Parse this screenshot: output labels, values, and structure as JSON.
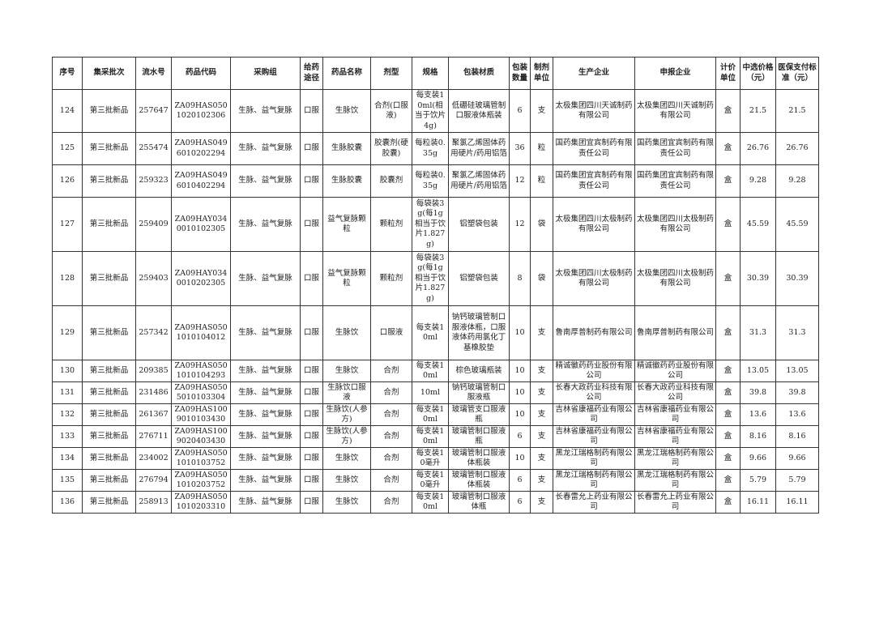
{
  "headers": [
    "序号",
    "集采批次",
    "流水号",
    "药品代码",
    "采购组",
    "给药途径",
    "药品名称",
    "剂型",
    "规格",
    "包装材质",
    "包装数量",
    "制剂单位",
    "生产企业",
    "申报企业",
    "计价单位",
    "中选价格（元）",
    "医保支付标准（元）"
  ],
  "rows": [
    [
      "124",
      "第三批新品",
      "257647",
      "ZA09HAS0501020102306",
      "生脉、益气复脉",
      "口服",
      "生脉饮",
      "合剂(口服液)",
      "每支装10ml(相当于饮片4g)",
      "低硼硅玻璃管制口服液体瓶装",
      "6",
      "支",
      "太极集团四川天诚制药有限公司",
      "太极集团四川天诚制药有限公司",
      "盒",
      "21.5",
      "21.5"
    ],
    [
      "125",
      "第三批新品",
      "255474",
      "ZA09HAS0496010202294",
      "生脉、益气复脉",
      "口服",
      "生脉胶囊",
      "胶囊剂(硬胶囊)",
      "每粒装0.35g",
      "聚氯乙烯固体药用硬片/药用铝箔",
      "36",
      "粒",
      "国药集团宜宾制药有限责任公司",
      "国药集团宜宾制药有限责任公司",
      "盒",
      "26.76",
      "26.76"
    ],
    [
      "126",
      "第三批新品",
      "259323",
      "ZA09HAS0496010402294",
      "生脉、益气复脉",
      "口服",
      "生脉胶囊",
      "胶囊剂",
      "每粒装0.35g",
      "聚氯乙烯固体药用硬片/药用铝箔",
      "12",
      "粒",
      "国药集团宜宾制药有限责任公司",
      "国药集团宜宾制药有限责任公司",
      "盒",
      "9.28",
      "9.28"
    ],
    [
      "127",
      "第三批新品",
      "259409",
      "ZA09HAY0340010102305",
      "生脉、益气复脉",
      "口服",
      "益气复脉颗粒",
      "颗粒剂",
      "每袋装3g(每1g相当于饮片1.827g)",
      "铝塑袋包装",
      "12",
      "袋",
      "太极集团四川太极制药有限公司",
      "太极集团四川太极制药有限公司",
      "盒",
      "45.59",
      "45.59"
    ],
    [
      "128",
      "第三批新品",
      "259403",
      "ZA09HAY0340010202305",
      "生脉、益气复脉",
      "口服",
      "益气复脉颗粒",
      "颗粒剂",
      "每袋装3g(每1g相当于饮片1.827g)",
      "铝塑袋包装",
      "8",
      "袋",
      "太极集团四川太极制药有限公司",
      "太极集团四川太极制药有限公司",
      "盒",
      "30.39",
      "30.39"
    ],
    [
      "129",
      "第三批新品",
      "257342",
      "ZA09HAS0501010104012",
      "生脉、益气复脉",
      "口服",
      "生脉饮",
      "口服液",
      "每支装10ml",
      "钠钙玻璃管制口服液体瓶，口服液体药用氯化丁基橡胶垫",
      "10",
      "支",
      "鲁南厚普制药有限公司",
      "鲁南厚普制药有限公司",
      "盒",
      "31.3",
      "31.3"
    ],
    [
      "130",
      "第三批新品",
      "209385",
      "ZA09HAS0501010104293",
      "生脉、益气复脉",
      "口服",
      "生脉饮",
      "合剂",
      "每支装10ml",
      "棕色玻璃瓶装",
      "10",
      "支",
      "精诚徽药药业股份有限公司",
      "精诚徽药药业股份有限公司",
      "盒",
      "13.05",
      "13.05"
    ],
    [
      "131",
      "第三批新品",
      "231486",
      "ZA09HAS0505010103304",
      "生脉、益气复脉",
      "口服",
      "生脉饮口服液",
      "合剂",
      "10ml",
      "钠钙玻璃管制口服液瓶",
      "10",
      "支",
      "长春大政药业科技有限公司",
      "长春大政药业科技有限公司",
      "盒",
      "39.8",
      "39.8"
    ],
    [
      "132",
      "第三批新品",
      "261367",
      "ZA09HAS1009010103430",
      "生脉、益气复脉",
      "口服",
      "生脉饮(人参方)",
      "合剂",
      "每支装10ml",
      "玻璃管支口服液瓶",
      "10",
      "支",
      "吉林省康福药业有限公司",
      "吉林省康福药业有限公司",
      "盒",
      "13.6",
      "13.6"
    ],
    [
      "133",
      "第三批新品",
      "276711",
      "ZA09HAS1009020403430",
      "生脉、益气复脉",
      "口服",
      "生脉饮(人参方)",
      "合剂",
      "每支装10ml",
      "玻璃管制口服液瓶",
      "6",
      "支",
      "吉林省康福药业有限公司",
      "吉林省康福药业有限公司",
      "盒",
      "8.16",
      "8.16"
    ],
    [
      "134",
      "第三批新品",
      "234002",
      "ZA09HAS0501010103752",
      "生脉、益气复脉",
      "口服",
      "生脉饮",
      "合剂",
      "每支装10毫升",
      "玻璃管制口服液体瓶装",
      "10",
      "支",
      "黑龙江瑞格制药有限公司",
      "黑龙江瑞格制药有限公司",
      "盒",
      "9.66",
      "9.66"
    ],
    [
      "135",
      "第三批新品",
      "276794",
      "ZA09HAS0501010203752",
      "生脉、益气复脉",
      "口服",
      "生脉饮",
      "合剂",
      "每支装10毫升",
      "玻璃管制口服液体瓶装",
      "6",
      "支",
      "黑龙江瑞格制药有限公司",
      "黑龙江瑞格制药有限公司",
      "盒",
      "5.79",
      "5.79"
    ],
    [
      "136",
      "第三批新品",
      "258913",
      "ZA09HAS0501010203310",
      "生脉、益气复脉",
      "口服",
      "生脉饮",
      "合剂",
      "每支装10ml",
      "玻璃管制口服液体瓶",
      "6",
      "支",
      "长春雷允上药业有限公司",
      "长春雷允上药业有限公司",
      "盒",
      "16.11",
      "16.11"
    ]
  ]
}
